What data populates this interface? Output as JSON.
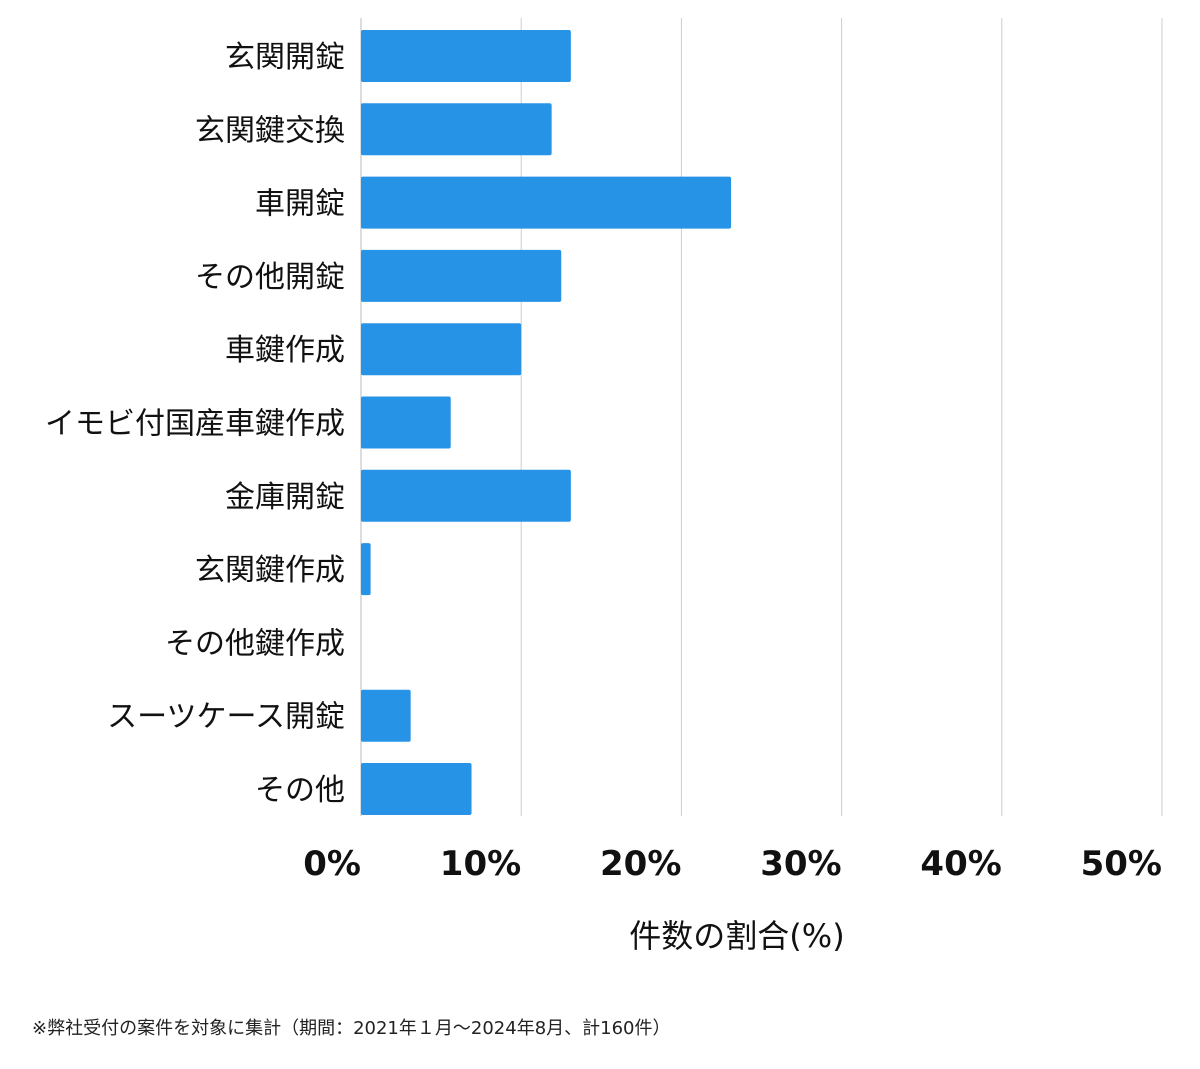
{
  "chart_data": {
    "type": "bar",
    "orientation": "horizontal",
    "categories": [
      "玄関開錠",
      "玄関鍵交換",
      "車開錠",
      "その他開錠",
      "車鍵作成",
      "イモビ付国産車鍵作成",
      "金庫開錠",
      "玄関鍵作成",
      "その他鍵作成",
      "スーツケース開錠",
      "その他"
    ],
    "values": [
      13.1,
      11.9,
      23.1,
      12.5,
      10.0,
      5.6,
      13.1,
      0.6,
      0.0,
      3.1,
      6.9
    ],
    "xlim": [
      0,
      50
    ],
    "xticks": [
      0,
      10,
      20,
      30,
      40,
      50
    ],
    "tick_labels": [
      "0%",
      "10%",
      "20%",
      "30%",
      "40%",
      "50%"
    ],
    "xlabel": "件数の割合(%)",
    "grid": true,
    "legend": "none"
  },
  "colors": {
    "bar": "#2793E6",
    "grid": "#cccccc",
    "axis": "#bbbbbb"
  },
  "footnote": "※弊社受付の案件を対象に集計（期間：2021年１月〜2024年8月、計160件）"
}
